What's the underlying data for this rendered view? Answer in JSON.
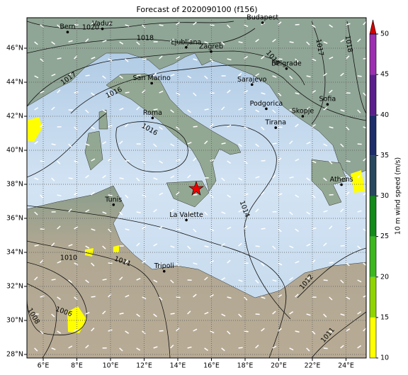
{
  "title": "Forecast of 2020090100 (f156)",
  "map": {
    "x_ticks": [
      {
        "value": 6,
        "label": "6°E"
      },
      {
        "value": 8,
        "label": "8°E"
      },
      {
        "value": 10,
        "label": "10°E"
      },
      {
        "value": 12,
        "label": "12°E"
      },
      {
        "value": 14,
        "label": "14°E"
      },
      {
        "value": 16,
        "label": "16°E"
      },
      {
        "value": 18,
        "label": "18°E"
      },
      {
        "value": 20,
        "label": "20°E"
      },
      {
        "value": 22,
        "label": "22°E"
      },
      {
        "value": 24,
        "label": "24°E"
      }
    ],
    "y_ticks": [
      {
        "value": 28,
        "label": "28°N"
      },
      {
        "value": 30,
        "label": "30°N"
      },
      {
        "value": 32,
        "label": "32°N"
      },
      {
        "value": 34,
        "label": "34°N"
      },
      {
        "value": 36,
        "label": "36°N"
      },
      {
        "value": 38,
        "label": "38°N"
      },
      {
        "value": 40,
        "label": "40°N"
      },
      {
        "value": 42,
        "label": "42°N"
      },
      {
        "value": 44,
        "label": "44°N"
      },
      {
        "value": 46,
        "label": "46°N"
      }
    ],
    "cities": [
      "Bern",
      "Vaduz",
      "Budapest",
      "Ljubljana",
      "Zagreb",
      "San Marino",
      "Belgrade",
      "Sarajevo",
      "Roma",
      "Podgorica",
      "Skopje",
      "Sofia",
      "Tirana",
      "Athens",
      "Tunis",
      "La Valette",
      "Tripoli"
    ],
    "isobar_labels": [
      "1020",
      "1018",
      "1017",
      "1016",
      "1016",
      "1016",
      "1017",
      "1018",
      "1014",
      "1012",
      "1011",
      "1010",
      "1011",
      "1006",
      "1008"
    ]
  },
  "colorbar": {
    "label": "10 m wind speed (m/s)",
    "range": [
      10,
      50
    ],
    "ticks": [
      10,
      15,
      20,
      25,
      30,
      35,
      40,
      45,
      50
    ],
    "colors": [
      "#ffff00",
      "#8fd400",
      "#3cb81e",
      "#138a1a",
      "#27485f",
      "#1d2d6a",
      "#5b1f8c",
      "#9b2fb0"
    ],
    "extend_color": "#d40000"
  }
}
